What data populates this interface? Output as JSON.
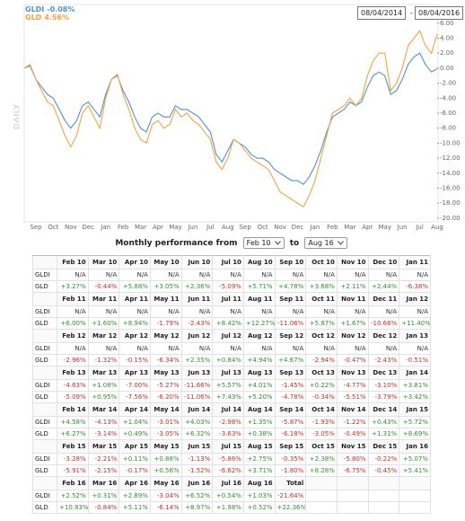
{
  "chart_data": {
    "type": "line",
    "watermark": "DAILY",
    "categories": [
      null,
      null,
      "Sep",
      null,
      null,
      "Oct",
      null,
      null,
      "Nov",
      null,
      null,
      "Dec",
      null,
      null,
      "Jan",
      null,
      null,
      "Feb",
      null,
      null,
      "Mar",
      null,
      null,
      "Apr",
      null,
      null,
      "May",
      null,
      null,
      "Jun",
      null,
      null,
      "Jul",
      null,
      null,
      "Aug",
      null,
      null,
      "Sep",
      null,
      null,
      "Oct",
      null,
      null,
      "Nov",
      null,
      null,
      "Dec",
      null,
      null,
      "Jan",
      null,
      null,
      "Feb",
      null,
      null,
      "Mar",
      null,
      null,
      "Apr",
      null,
      null,
      "May",
      null,
      null,
      "Jun",
      null,
      null,
      "Jul",
      null,
      null,
      "Aug"
    ],
    "series": [
      {
        "name": "GLDI",
        "change": "-0.08%",
        "color": "#4f93c9",
        "values": [
          0,
          0.3,
          -1.5,
          -2.5,
          -3.5,
          -4,
          -5.5,
          -7,
          -8,
          -7,
          -5,
          -4.5,
          -5.5,
          -6.5,
          -3.5,
          -1.5,
          -1,
          -3,
          -4.5,
          -6.5,
          -8,
          -8.5,
          -6.5,
          -6,
          -6.5,
          -6.5,
          -5,
          -5.5,
          -5.5,
          -6,
          -6.5,
          -7.5,
          -8.5,
          -11.5,
          -12.5,
          -11,
          -9.5,
          -10,
          -10.5,
          -11.5,
          -12,
          -12,
          -12.5,
          -13.5,
          -14,
          -14.5,
          -15,
          -15,
          -15.5,
          -14.5,
          -13,
          -11,
          -8.5,
          -6.5,
          -6,
          -5.5,
          -4.5,
          -5,
          -4.5,
          -2.5,
          -1,
          -0.5,
          -1,
          -3.5,
          -3,
          -1.5,
          0.5,
          1.5,
          2,
          0.5,
          -0.5,
          -0.08
        ]
      },
      {
        "name": "GLD",
        "change": "4.56%",
        "color": "#f5a142",
        "values": [
          0,
          0.5,
          -1.5,
          -3,
          -4.5,
          -5,
          -7,
          -9,
          -10.5,
          -9,
          -6,
          -5,
          -6.5,
          -8,
          -4,
          -1.5,
          -0.8,
          -3.5,
          -5.5,
          -8,
          -9.5,
          -10,
          -7.5,
          -7,
          -8,
          -7.5,
          -5.5,
          -6.5,
          -6,
          -7,
          -7.5,
          -8.5,
          -9.5,
          -12.5,
          -13.5,
          -12,
          -9.5,
          -10,
          -11,
          -12,
          -12.5,
          -13,
          -13.5,
          -15,
          -16.5,
          -17,
          -17.5,
          -18,
          -18.5,
          -17,
          -15,
          -12,
          -9,
          -6,
          -5.5,
          -5,
          -4,
          -5,
          -4,
          -1,
          1,
          2,
          2,
          -3,
          -2,
          0,
          3,
          4,
          5,
          3,
          2,
          4.56
        ]
      }
    ],
    "ylim": [
      -20.5,
      8.5
    ],
    "yticks": [
      {
        "value": 6,
        "label": "6.00"
      },
      {
        "value": 4,
        "label": "4.00"
      },
      {
        "value": 2,
        "label": "2.00"
      },
      {
        "value": 0,
        "label": "0.00"
      },
      {
        "value": -2,
        "label": "-2.00"
      },
      {
        "value": -4,
        "label": "-4.00"
      },
      {
        "value": -6,
        "label": "-6.00"
      },
      {
        "value": -8,
        "label": "-8.00"
      },
      {
        "value": -10,
        "label": "-10.00"
      },
      {
        "value": -12,
        "label": "-12.00"
      },
      {
        "value": -14,
        "label": "-14.00"
      },
      {
        "value": -16,
        "label": "-16.00"
      },
      {
        "value": -18,
        "label": "-18.00"
      },
      {
        "value": -20,
        "label": "-20.00"
      }
    ],
    "y_axis_side": "right"
  },
  "date_range": {
    "start": "08/04/2014",
    "separator": "-",
    "end": "08/04/2016"
  },
  "performance": {
    "title": "Monthly performance from",
    "from": "Feb 10",
    "to_label": "to",
    "to": "Aug 16"
  },
  "table": {
    "blocks": [
      {
        "months": [
          "Feb 10",
          "Mar 10",
          "Apr 10",
          "May 10",
          "Jun 10",
          "Jul 10",
          "Aug 10",
          "Sep 10",
          "Oct 10",
          "Nov 10",
          "Dec 10",
          "Jan 11"
        ],
        "rows": [
          {
            "label": "GLDI",
            "values": [
              "N/A",
              "N/A",
              "N/A",
              "N/A",
              "N/A",
              "N/A",
              "N/A",
              "N/A",
              "N/A",
              "N/A",
              "N/A",
              "N/A"
            ]
          },
          {
            "label": "GLD",
            "values": [
              "+3.27%",
              "-0.44%",
              "+5.88%",
              "+3.05%",
              "+2.36%",
              "-5.09%",
              "+5.71%",
              "+4.78%",
              "+3.68%",
              "+2.11%",
              "+2.44%",
              "-6.38%"
            ]
          }
        ]
      },
      {
        "months": [
          "Feb 11",
          "Mar 11",
          "Apr 11",
          "May 11",
          "Jun 11",
          "Jul 11",
          "Aug 11",
          "Sep 11",
          "Oct 11",
          "Nov 11",
          "Dec 11",
          "Jan 12"
        ],
        "rows": [
          {
            "label": "GLDI",
            "values": [
              "N/A",
              "N/A",
              "N/A",
              "N/A",
              "N/A",
              "N/A",
              "N/A",
              "N/A",
              "N/A",
              "N/A",
              "N/A",
              "N/A"
            ]
          },
          {
            "label": "GLD",
            "values": [
              "+6.00%",
              "+1.60%",
              "+8.94%",
              "-1.79%",
              "-2.43%",
              "+8.42%",
              "+12.27%",
              "-11.06%",
              "+5.87%",
              "+1.67%",
              "-10.66%",
              "+11.40%"
            ]
          }
        ]
      },
      {
        "months": [
          "Feb 12",
          "Mar 12",
          "Apr 12",
          "May 12",
          "Jun 12",
          "Jul 12",
          "Aug 12",
          "Sep 12",
          "Oct 12",
          "Nov 12",
          "Dec 12",
          "Jan 13"
        ],
        "rows": [
          {
            "label": "GLDI",
            "values": [
              "N/A",
              "N/A",
              "N/A",
              "N/A",
              "N/A",
              "N/A",
              "N/A",
              "N/A",
              "N/A",
              "N/A",
              "N/A",
              "N/A"
            ]
          },
          {
            "label": "GLD",
            "values": [
              "-2.96%",
              "-1.32%",
              "-0.15%",
              "-6.34%",
              "+2.35%",
              "+0.84%",
              "+4.94%",
              "+4.67%",
              "-2.94%",
              "-0.47%",
              "-2.43%",
              "-0.51%"
            ]
          }
        ]
      },
      {
        "months": [
          "Feb 13",
          "Mar 13",
          "Apr 13",
          "May 13",
          "Jun 13",
          "Jul 13",
          "Aug 13",
          "Sep 13",
          "Oct 13",
          "Nov 13",
          "Dec 13",
          "Jan 14"
        ],
        "rows": [
          {
            "label": "GLDI",
            "values": [
              "-4.63%",
              "+1.08%",
              "-7.00%",
              "-5.27%",
              "-11.66%",
              "+5.57%",
              "+4.01%",
              "-1.45%",
              "+0.22%",
              "-4.77%",
              "-3.10%",
              "+3.81%"
            ]
          },
          {
            "label": "GLD",
            "values": [
              "-5.09%",
              "+0.95%",
              "-7.56%",
              "-6.20%",
              "-11.06%",
              "+7.43%",
              "+5.20%",
              "-4.78%",
              "-0.34%",
              "-5.51%",
              "-3.79%",
              "+3.42%"
            ]
          }
        ]
      },
      {
        "months": [
          "Feb 14",
          "Mar 14",
          "Apr 14",
          "May 14",
          "Jun 14",
          "Jul 14",
          "Aug 14",
          "Sep 14",
          "Oct 14",
          "Nov 14",
          "Dec 14",
          "Jan 15"
        ],
        "rows": [
          {
            "label": "GLDI",
            "values": [
              "+4.58%",
              "-4.13%",
              "+1.04%",
              "-3.01%",
              "+4.03%",
              "-2.98%",
              "+1.35%",
              "-5.87%",
              "-1.93%",
              "-1.22%",
              "+0.43%",
              "+5.72%"
            ]
          },
          {
            "label": "GLD",
            "values": [
              "+6.27%",
              "-3.14%",
              "+0.49%",
              "-3.05%",
              "+6.32%",
              "-3.63%",
              "+0.38%",
              "-6.18%",
              "-3.05%",
              "-0.49%",
              "+1.31%",
              "+8.69%"
            ]
          }
        ]
      },
      {
        "months": [
          "Feb 15",
          "Mar 15",
          "Apr 15",
          "May 15",
          "Jun 15",
          "Jul 15",
          "Aug 15",
          "Sep 15",
          "Oct 15",
          "Nov 15",
          "Dec 15",
          "Jan 16"
        ],
        "rows": [
          {
            "label": "GLDI",
            "values": [
              "-3.28%",
              "-2.21%",
              "+0.11%",
              "+0.88%",
              "-1.13%",
              "-5.86%",
              "+2.75%",
              "-0.35%",
              "+2.38%",
              "-5.80%",
              "-0.22%",
              "+5.07%"
            ]
          },
          {
            "label": "GLD",
            "values": [
              "-5.91%",
              "-2.15%",
              "-0.17%",
              "+0.56%",
              "-1.52%",
              "-6.62%",
              "+3.71%",
              "-1.80%",
              "+8.28%",
              "-6.75%",
              "-0.45%",
              "+5.41%"
            ]
          }
        ]
      },
      {
        "months": [
          "Feb 16",
          "Mar 16",
          "Apr 16",
          "May 16",
          "Jun 16",
          "Jul 16",
          "Aug 16",
          "Total"
        ],
        "rows": [
          {
            "label": "GLDI",
            "values": [
              "+2.52%",
              "+0.31%",
              "+2.89%",
              "-3.04%",
              "+6.52%",
              "+0.54%",
              "+1.03%",
              "-21.64%"
            ]
          },
          {
            "label": "GLD",
            "values": [
              "+10.93%",
              "-0.84%",
              "+5.11%",
              "-6.14%",
              "+8.97%",
              "+1.98%",
              "+0.52%",
              "+22.36%"
            ]
          }
        ]
      }
    ]
  }
}
